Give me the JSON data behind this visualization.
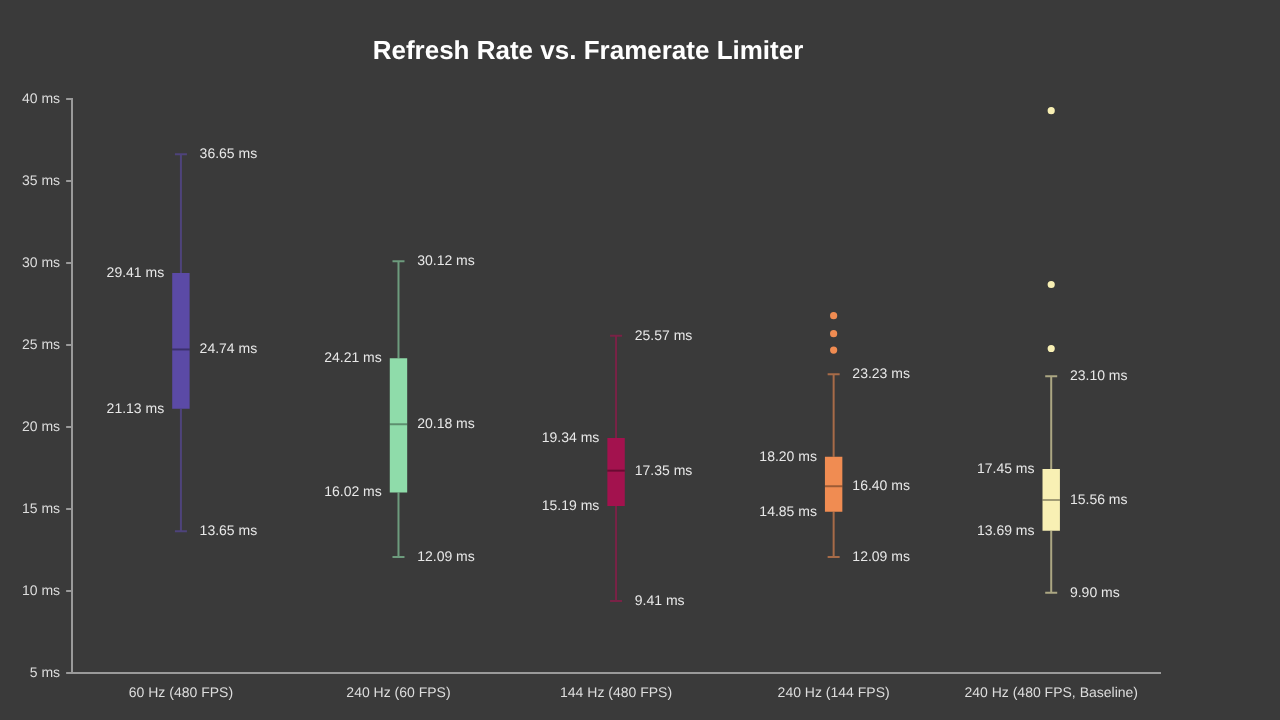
{
  "chart_data": {
    "type": "box",
    "title": "Refresh Rate vs. Framerate Limiter",
    "categories": [
      "60 Hz (480 FPS)",
      "240 Hz (60 FPS)",
      "144 Hz (480 FPS)",
      "240 Hz (144 FPS)",
      "240 Hz (480 FPS, Baseline)"
    ],
    "colors": [
      "#5b4aa6",
      "#8fdcaa",
      "#a3124e",
      "#f08c52",
      "#f8f0b4"
    ],
    "boxes": [
      {
        "low": 13.65,
        "q1": 21.13,
        "median": 24.74,
        "q3": 29.41,
        "high": 36.65
      },
      {
        "low": 12.09,
        "q1": 16.02,
        "median": 20.18,
        "q3": 24.21,
        "high": 30.12
      },
      {
        "low": 9.41,
        "q1": 15.19,
        "median": 17.35,
        "q3": 19.34,
        "high": 25.57
      },
      {
        "low": 12.09,
        "q1": 14.85,
        "median": 16.4,
        "q3": 18.2,
        "high": 23.23,
        "outliers": [
          24.7,
          25.7,
          26.8
        ]
      },
      {
        "low": 9.9,
        "q1": 13.69,
        "median": 15.56,
        "q3": 17.45,
        "high": 23.1,
        "outliers": [
          24.8,
          28.7,
          39.3
        ]
      }
    ],
    "value_labels": [
      [
        "13.65 ms",
        "21.13 ms",
        "24.74 ms",
        "29.41 ms",
        "36.65 ms"
      ],
      [
        "12.09 ms",
        "16.02 ms",
        "20.18 ms",
        "24.21 ms",
        "30.12 ms"
      ],
      [
        "9.41 ms",
        "15.19 ms",
        "17.35 ms",
        "19.34 ms",
        "25.57 ms"
      ],
      [
        "12.09 ms",
        "14.85 ms",
        "16.40 ms",
        "18.20 ms",
        "23.23 ms"
      ],
      [
        "9.90 ms",
        "13.69 ms",
        "15.56 ms",
        "17.45 ms",
        "23.10 ms"
      ]
    ],
    "ylim": [
      5,
      40
    ],
    "yticks": [
      {
        "value": 5,
        "label": "5 ms"
      },
      {
        "value": 10,
        "label": "10 ms"
      },
      {
        "value": 15,
        "label": "15 ms"
      },
      {
        "value": 20,
        "label": "20 ms"
      },
      {
        "value": 25,
        "label": "25 ms"
      },
      {
        "value": 30,
        "label": "30 ms"
      },
      {
        "value": 35,
        "label": "35 ms"
      },
      {
        "value": 40,
        "label": "40 ms"
      }
    ],
    "grid": false,
    "legend": false
  }
}
